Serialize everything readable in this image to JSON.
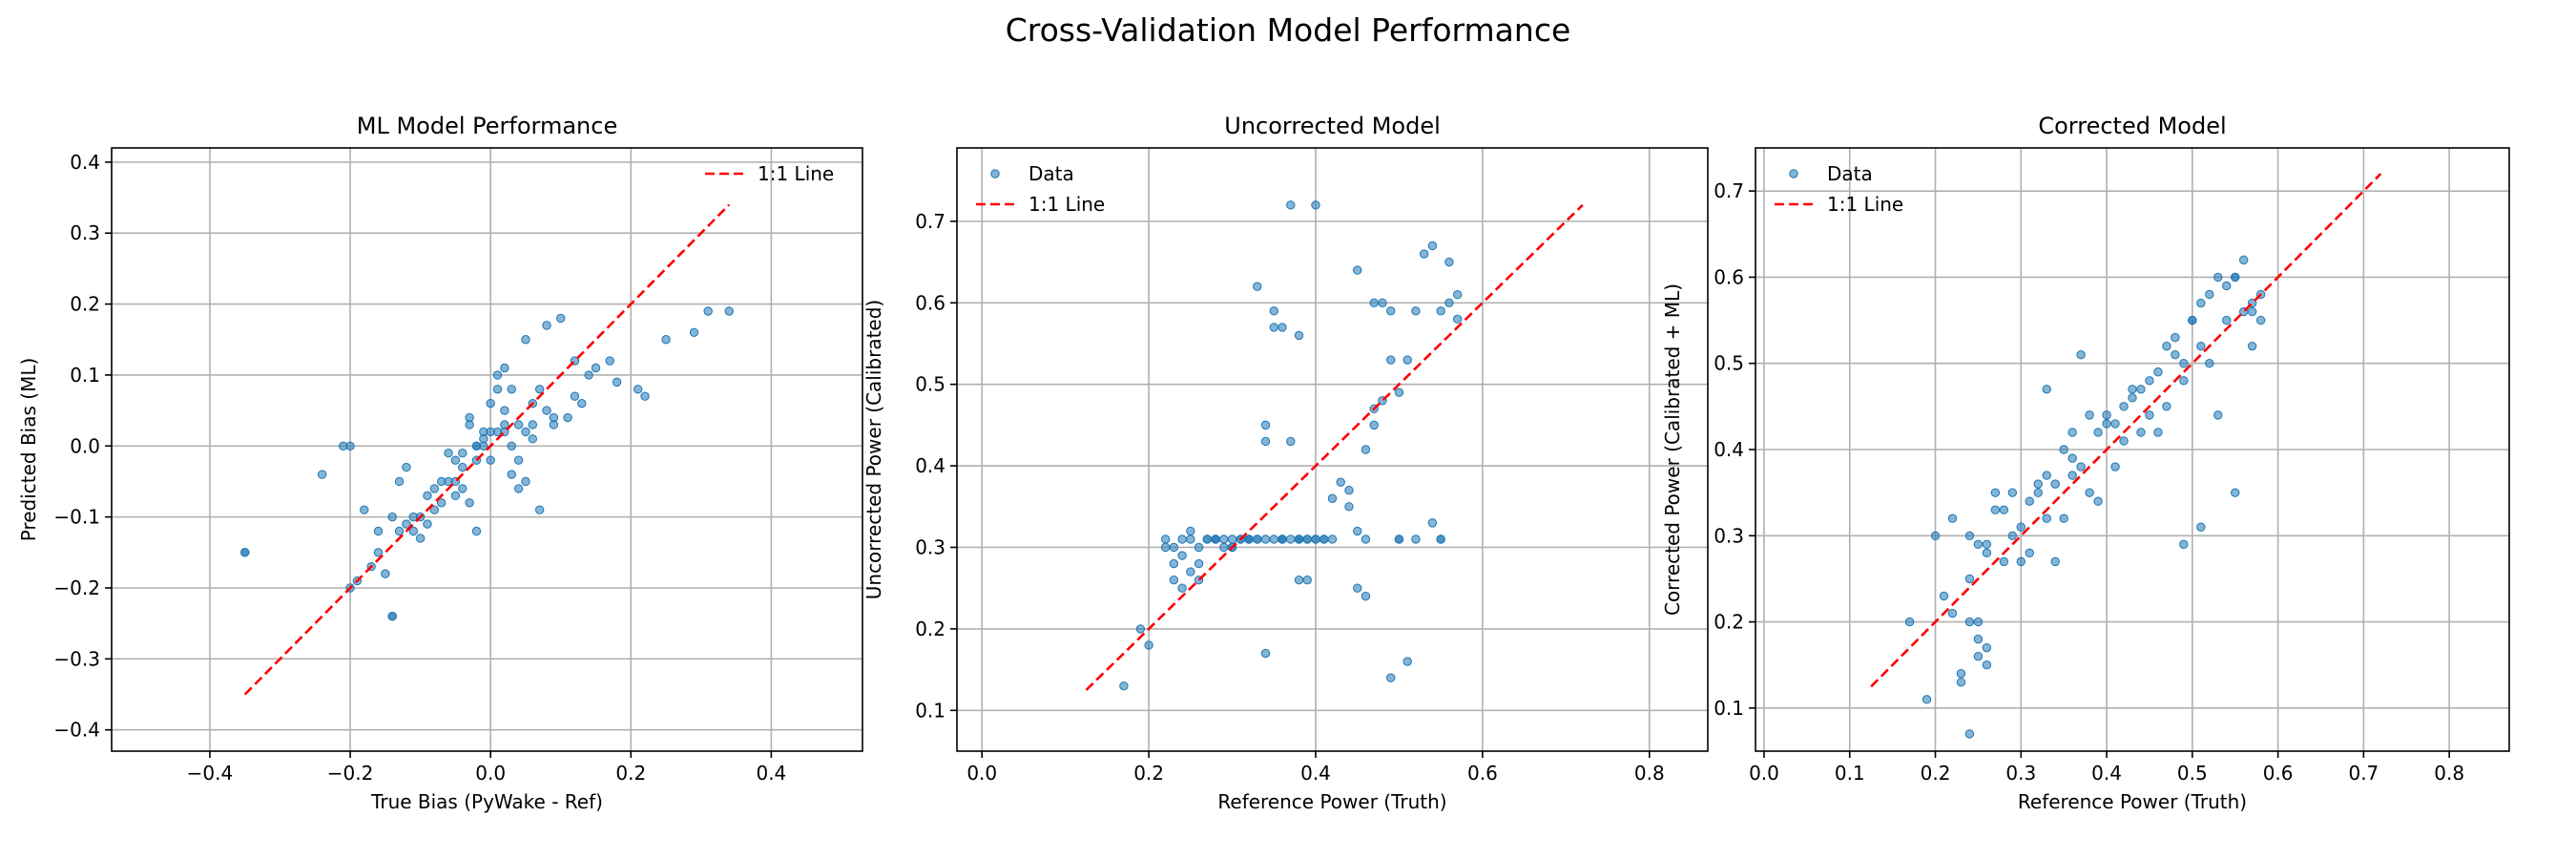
{
  "suptitle": "Cross-Validation Model Performance",
  "chart_data": [
    {
      "type": "scatter",
      "title": "ML Model Performance",
      "xlabel": "True Bias (PyWake - Ref)",
      "ylabel": "Predicted Bias (ML)",
      "xlim": [
        -0.54,
        0.53
      ],
      "ylim": [
        -0.43,
        0.42
      ],
      "xticks": [
        -0.4,
        -0.2,
        0.0,
        0.2,
        0.4
      ],
      "xtick_labels": [
        "−0.4",
        "−0.2",
        "0.0",
        "0.2",
        "0.4"
      ],
      "yticks": [
        -0.4,
        -0.3,
        -0.2,
        -0.1,
        0.0,
        0.1,
        0.2,
        0.3,
        0.4
      ],
      "ytick_labels": [
        "−0.4",
        "−0.3",
        "−0.2",
        "−0.1",
        "0.0",
        "0.1",
        "0.2",
        "0.3",
        "0.4"
      ],
      "legend": {
        "position": "top-right",
        "entries": [
          {
            "label": "1:1 Line",
            "kind": "line"
          }
        ]
      },
      "line": {
        "name": "1:1 Line",
        "x": [
          -0.35,
          0.34
        ],
        "y": [
          -0.35,
          0.34
        ],
        "color": "#ff0000",
        "style": "dashed"
      },
      "series": [
        {
          "name": "",
          "color": "#1f77b4",
          "x": [
            -0.35,
            -0.35,
            -0.24,
            -0.21,
            -0.2,
            -0.2,
            -0.19,
            -0.18,
            -0.17,
            -0.16,
            -0.15,
            -0.14,
            -0.14,
            -0.13,
            -0.12,
            -0.11,
            -0.1,
            -0.09,
            -0.08,
            -0.07,
            -0.06,
            -0.05,
            -0.05,
            -0.04,
            -0.04,
            -0.03,
            -0.03,
            -0.02,
            -0.02,
            -0.01,
            -0.01,
            0.0,
            0.0,
            0.01,
            0.01,
            0.02,
            0.02,
            0.02,
            0.03,
            0.03,
            0.04,
            0.04,
            0.05,
            0.05,
            0.06,
            0.06,
            0.07,
            0.08,
            0.09,
            0.1,
            0.11,
            0.12,
            0.13,
            0.15,
            0.17,
            0.18,
            0.21,
            0.22,
            0.25,
            0.29,
            0.31,
            0.34,
            -0.16,
            -0.14,
            -0.12,
            -0.08,
            -0.05,
            -0.02,
            0.02,
            0.05,
            0.08,
            0.12,
            -0.06,
            -0.03,
            0.0,
            0.03,
            -0.1,
            -0.07,
            -0.01,
            0.06,
            0.01,
            -0.04,
            0.04,
            0.09,
            -0.02,
            0.07,
            -0.09,
            -0.11,
            0.14,
            -0.13
          ],
          "y": [
            -0.15,
            -0.15,
            -0.04,
            0.0,
            0.0,
            -0.2,
            -0.19,
            -0.09,
            -0.17,
            -0.15,
            -0.18,
            -0.24,
            -0.24,
            -0.12,
            -0.11,
            -0.1,
            -0.1,
            -0.07,
            -0.06,
            -0.05,
            -0.05,
            -0.02,
            -0.07,
            -0.03,
            -0.06,
            -0.08,
            0.03,
            -0.12,
            -0.02,
            0.0,
            0.02,
            0.02,
            -0.02,
            0.08,
            0.1,
            0.11,
            0.05,
            0.03,
            0.0,
            0.08,
            -0.02,
            -0.06,
            0.02,
            0.15,
            0.03,
            0.06,
            0.08,
            0.17,
            0.03,
            0.18,
            0.04,
            0.12,
            0.06,
            0.11,
            0.12,
            0.09,
            0.08,
            0.07,
            0.15,
            0.16,
            0.19,
            0.19,
            -0.12,
            -0.1,
            -0.03,
            -0.09,
            -0.05,
            0.0,
            0.02,
            -0.05,
            0.05,
            0.07,
            -0.01,
            0.04,
            0.06,
            -0.04,
            -0.13,
            -0.08,
            0.01,
            0.01,
            0.02,
            -0.01,
            0.03,
            0.04,
            0.0,
            -0.09,
            -0.11,
            -0.12,
            0.1,
            -0.05
          ]
        }
      ]
    },
    {
      "type": "scatter",
      "title": "Uncorrected Model",
      "xlabel": "Reference Power (Truth)",
      "ylabel": "Uncorrected Power (Calibrated)",
      "xlim": [
        -0.03,
        0.87
      ],
      "ylim": [
        0.05,
        0.79
      ],
      "xticks": [
        0.0,
        0.2,
        0.4,
        0.6,
        0.8
      ],
      "xtick_labels": [
        "0.0",
        "0.2",
        "0.4",
        "0.6",
        "0.8"
      ],
      "yticks": [
        0.1,
        0.2,
        0.3,
        0.4,
        0.5,
        0.6,
        0.7
      ],
      "ytick_labels": [
        "0.1",
        "0.2",
        "0.3",
        "0.4",
        "0.5",
        "0.6",
        "0.7"
      ],
      "legend": {
        "position": "top-left",
        "entries": [
          {
            "label": "Data",
            "kind": "marker"
          },
          {
            "label": "1:1 Line",
            "kind": "line"
          }
        ]
      },
      "line": {
        "name": "1:1 Line",
        "x": [
          0.125,
          0.72
        ],
        "y": [
          0.125,
          0.72
        ],
        "color": "#ff0000",
        "style": "dashed"
      },
      "series": [
        {
          "name": "Data",
          "color": "#1f77b4",
          "x": [
            0.17,
            0.19,
            0.2,
            0.22,
            0.22,
            0.23,
            0.23,
            0.24,
            0.24,
            0.25,
            0.25,
            0.26,
            0.26,
            0.27,
            0.28,
            0.29,
            0.3,
            0.31,
            0.32,
            0.33,
            0.34,
            0.35,
            0.36,
            0.37,
            0.38,
            0.38,
            0.39,
            0.39,
            0.4,
            0.41,
            0.42,
            0.43,
            0.44,
            0.45,
            0.46,
            0.46,
            0.47,
            0.47,
            0.48,
            0.49,
            0.49,
            0.5,
            0.5,
            0.51,
            0.51,
            0.52,
            0.53,
            0.54,
            0.55,
            0.55,
            0.56,
            0.56,
            0.57,
            0.57,
            0.33,
            0.34,
            0.35,
            0.37,
            0.38,
            0.39,
            0.4,
            0.41,
            0.45,
            0.46,
            0.47,
            0.48,
            0.35,
            0.36,
            0.34,
            0.37,
            0.23,
            0.24,
            0.25,
            0.26,
            0.27,
            0.28,
            0.29,
            0.3,
            0.31,
            0.32,
            0.36,
            0.33,
            0.38,
            0.42,
            0.44,
            0.45,
            0.49,
            0.5,
            0.52,
            0.54,
            0.55,
            0.28,
            0.3,
            0.32,
            0.34,
            0.36,
            0.38,
            0.4
          ],
          "y": [
            0.13,
            0.2,
            0.18,
            0.31,
            0.3,
            0.26,
            0.28,
            0.25,
            0.31,
            0.27,
            0.31,
            0.28,
            0.3,
            0.31,
            0.31,
            0.31,
            0.3,
            0.31,
            0.31,
            0.31,
            0.17,
            0.31,
            0.31,
            0.31,
            0.31,
            0.26,
            0.26,
            0.31,
            0.31,
            0.31,
            0.31,
            0.38,
            0.37,
            0.25,
            0.24,
            0.31,
            0.47,
            0.6,
            0.48,
            0.53,
            0.59,
            0.31,
            0.49,
            0.16,
            0.53,
            0.59,
            0.66,
            0.67,
            0.59,
            0.31,
            0.6,
            0.65,
            0.58,
            0.61,
            0.62,
            0.43,
            0.57,
            0.72,
            0.56,
            0.31,
            0.72,
            0.31,
            0.64,
            0.42,
            0.45,
            0.6,
            0.59,
            0.57,
            0.45,
            0.43,
            0.3,
            0.29,
            0.32,
            0.26,
            0.31,
            0.31,
            0.3,
            0.3,
            0.31,
            0.31,
            0.31,
            0.31,
            0.31,
            0.36,
            0.35,
            0.32,
            0.14,
            0.31,
            0.31,
            0.33,
            0.31,
            0.31,
            0.31,
            0.31,
            0.31,
            0.31,
            0.31,
            0.31
          ]
        }
      ]
    },
    {
      "type": "scatter",
      "title": "Corrected Model",
      "xlabel": "Reference Power (Truth)",
      "ylabel": "Corrected Power (Calibrated + ML)",
      "xlim": [
        -0.01,
        0.87
      ],
      "ylim": [
        0.05,
        0.75
      ],
      "xticks": [
        0.0,
        0.1,
        0.2,
        0.3,
        0.4,
        0.5,
        0.6,
        0.7,
        0.8
      ],
      "xtick_labels": [
        "0.0",
        "0.1",
        "0.2",
        "0.3",
        "0.4",
        "0.5",
        "0.6",
        "0.7",
        "0.8"
      ],
      "yticks": [
        0.1,
        0.2,
        0.3,
        0.4,
        0.5,
        0.6,
        0.7
      ],
      "ytick_labels": [
        "0.1",
        "0.2",
        "0.3",
        "0.4",
        "0.5",
        "0.6",
        "0.7"
      ],
      "legend": {
        "position": "top-left",
        "entries": [
          {
            "label": "Data",
            "kind": "marker"
          },
          {
            "label": "1:1 Line",
            "kind": "line"
          }
        ]
      },
      "line": {
        "name": "1:1 Line",
        "x": [
          0.125,
          0.72
        ],
        "y": [
          0.125,
          0.72
        ],
        "color": "#ff0000",
        "style": "dashed"
      },
      "series": [
        {
          "name": "Data",
          "color": "#1f77b4",
          "x": [
            0.17,
            0.19,
            0.2,
            0.21,
            0.22,
            0.23,
            0.24,
            0.24,
            0.25,
            0.25,
            0.26,
            0.26,
            0.27,
            0.28,
            0.29,
            0.3,
            0.31,
            0.32,
            0.33,
            0.34,
            0.35,
            0.36,
            0.37,
            0.38,
            0.39,
            0.4,
            0.41,
            0.42,
            0.43,
            0.44,
            0.45,
            0.46,
            0.47,
            0.48,
            0.49,
            0.5,
            0.51,
            0.52,
            0.53,
            0.54,
            0.55,
            0.56,
            0.57,
            0.58,
            0.24,
            0.25,
            0.26,
            0.22,
            0.23,
            0.27,
            0.29,
            0.31,
            0.33,
            0.35,
            0.37,
            0.39,
            0.41,
            0.43,
            0.46,
            0.48,
            0.5,
            0.52,
            0.54,
            0.56,
            0.58,
            0.3,
            0.32,
            0.34,
            0.36,
            0.38,
            0.4,
            0.42,
            0.44,
            0.47,
            0.49,
            0.51,
            0.53,
            0.55,
            0.57,
            0.28,
            0.33,
            0.36,
            0.45,
            0.49,
            0.51,
            0.55,
            0.24,
            0.25,
            0.26,
            0.57
          ],
          "y": [
            0.2,
            0.11,
            0.3,
            0.23,
            0.21,
            0.13,
            0.2,
            0.07,
            0.16,
            0.18,
            0.28,
            0.29,
            0.35,
            0.27,
            0.3,
            0.31,
            0.34,
            0.35,
            0.32,
            0.36,
            0.4,
            0.37,
            0.38,
            0.35,
            0.42,
            0.43,
            0.38,
            0.45,
            0.46,
            0.47,
            0.44,
            0.49,
            0.52,
            0.51,
            0.48,
            0.55,
            0.52,
            0.58,
            0.6,
            0.55,
            0.6,
            0.62,
            0.57,
            0.58,
            0.3,
            0.29,
            0.17,
            0.32,
            0.14,
            0.33,
            0.35,
            0.28,
            0.37,
            0.32,
            0.51,
            0.34,
            0.43,
            0.47,
            0.42,
            0.53,
            0.55,
            0.5,
            0.59,
            0.56,
            0.55,
            0.27,
            0.36,
            0.27,
            0.42,
            0.44,
            0.44,
            0.41,
            0.42,
            0.45,
            0.29,
            0.31,
            0.44,
            0.6,
            0.52,
            0.33,
            0.47,
            0.39,
            0.48,
            0.5,
            0.57,
            0.35,
            0.25,
            0.2,
            0.15,
            0.56
          ]
        }
      ]
    }
  ]
}
